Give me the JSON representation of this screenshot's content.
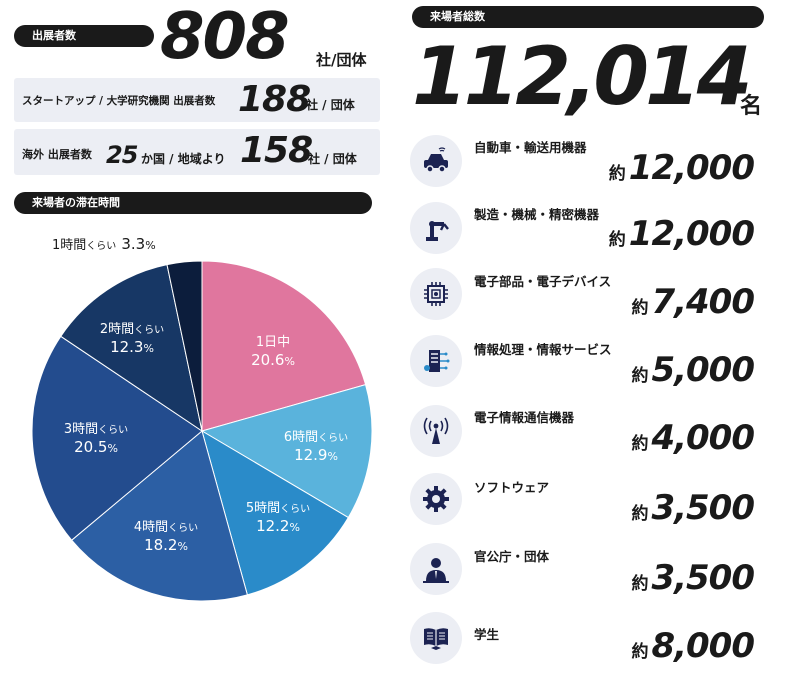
{
  "exhibitors": {
    "label": "出展者数",
    "value": "808",
    "unit": "社/団体",
    "startup": {
      "label": "スタートアップ / 大学研究機関 出展者数",
      "value": "188",
      "unit": "社 / 団体"
    },
    "overseas": {
      "label": "海外 出展者数",
      "countries": "25",
      "countries_unit": "か国 / 地域より",
      "value": "158",
      "unit": "社 / 団体"
    }
  },
  "visitors_total": {
    "label": "来場者総数",
    "value": "112,014",
    "unit": "名"
  },
  "chart_data": {
    "type": "pie",
    "title": "来場者の滞在時間",
    "slices": [
      {
        "label": "1日中",
        "value": 20.6,
        "color": "#e0769e"
      },
      {
        "label": "6時間くらい",
        "value": 12.9,
        "color": "#5ab3dc"
      },
      {
        "label": "5時間くらい",
        "value": 12.2,
        "color": "#2a8bc9"
      },
      {
        "label": "4時間くらい",
        "value": 18.2,
        "color": "#2c5fa4"
      },
      {
        "label": "3時間くらい",
        "value": 20.5,
        "color": "#234c8e"
      },
      {
        "label": "2時間くらい",
        "value": 12.3,
        "color": "#173765"
      },
      {
        "label": "1時間くらい",
        "value": 3.3,
        "color": "#0c1d3c"
      }
    ]
  },
  "pie_labels": {
    "s1": {
      "time": "1日中",
      "pct": "20.6"
    },
    "s6": {
      "time": "6時間",
      "kurai": "くらい",
      "pct": "12.9"
    },
    "s5": {
      "time": "5時間",
      "kurai": "くらい",
      "pct": "12.2"
    },
    "s4": {
      "time": "4時間",
      "kurai": "くらい",
      "pct": "18.2"
    },
    "s3": {
      "time": "3時間",
      "kurai": "くらい",
      "pct": "20.5"
    },
    "s2": {
      "time": "2時間",
      "kurai": "くらい",
      "pct": "12.3"
    },
    "s0": {
      "time": "1時間",
      "kurai": "くらい",
      "pct": "3.3"
    },
    "percent": "%"
  },
  "categories": [
    {
      "icon": "car-icon",
      "label": "自動車・輸送用機器",
      "approx": "約",
      "value": "12,000"
    },
    {
      "icon": "robot-arm-icon",
      "label": "製造・機械・精密機器",
      "approx": "約",
      "value": "12,000"
    },
    {
      "icon": "chip-icon",
      "label": "電子部品・電子デバイス",
      "approx": "約",
      "value": "7,400"
    },
    {
      "icon": "server-icon",
      "label": "情報処理・情報サービス",
      "approx": "約",
      "value": "5,000"
    },
    {
      "icon": "antenna-icon",
      "label": "電子情報通信機器",
      "approx": "約",
      "value": "4,000"
    },
    {
      "icon": "gear-icon",
      "label": "ソフトウェア",
      "approx": "約",
      "value": "3,500"
    },
    {
      "icon": "person-icon",
      "label": "官公庁・団体",
      "approx": "約",
      "value": "3,500"
    },
    {
      "icon": "book-icon",
      "label": "学生",
      "approx": "約",
      "value": "8,000"
    }
  ],
  "colors": {
    "dark": "#1a1a1a",
    "panel": "#eceef4",
    "value_navy": "#1c2352"
  }
}
